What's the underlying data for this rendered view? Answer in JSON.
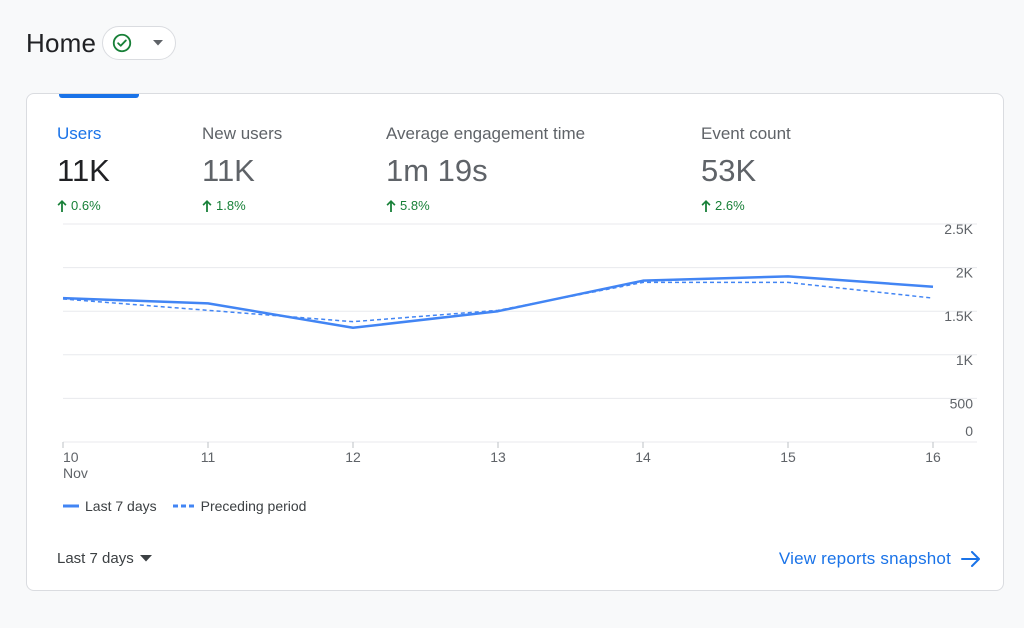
{
  "header": {
    "title": "Home",
    "status_icon": "check-circle",
    "dropdown_icon": "caret-down"
  },
  "metrics": [
    {
      "label": "Users",
      "value": "11K",
      "change": "0.6%",
      "direction": "up",
      "active": true
    },
    {
      "label": "New users",
      "value": "11K",
      "change": "1.8%",
      "direction": "up",
      "active": false
    },
    {
      "label": "Average engagement time",
      "value": "1m 19s",
      "change": "5.8%",
      "direction": "up",
      "active": false
    },
    {
      "label": "Event count",
      "value": "53K",
      "change": "2.6%",
      "direction": "up",
      "active": false
    }
  ],
  "chart_data": {
    "type": "line",
    "x": [
      "10",
      "11",
      "12",
      "13",
      "14",
      "15",
      "16"
    ],
    "x_month_label": "Nov",
    "series": [
      {
        "name": "Last 7 days",
        "style": "solid",
        "color": "#4285f4",
        "values": [
          1650,
          1590,
          1310,
          1500,
          1850,
          1900,
          1780
        ]
      },
      {
        "name": "Preceding period",
        "style": "dashed",
        "color": "#4285f4",
        "values": [
          1640,
          1510,
          1380,
          1510,
          1830,
          1830,
          1650
        ]
      }
    ],
    "y_ticks": [
      "2.5K",
      "2K",
      "1.5K",
      "1K",
      "500",
      "0"
    ],
    "y_tick_values": [
      2500,
      2000,
      1500,
      1000,
      500,
      0
    ],
    "ylim": [
      0,
      2500
    ],
    "grid": true
  },
  "footer": {
    "date_range_label": "Last 7 days",
    "view_link_label": "View reports snapshot"
  },
  "colors": {
    "accent": "#1a73e8",
    "positive": "#188038",
    "series": "#4285f4"
  }
}
